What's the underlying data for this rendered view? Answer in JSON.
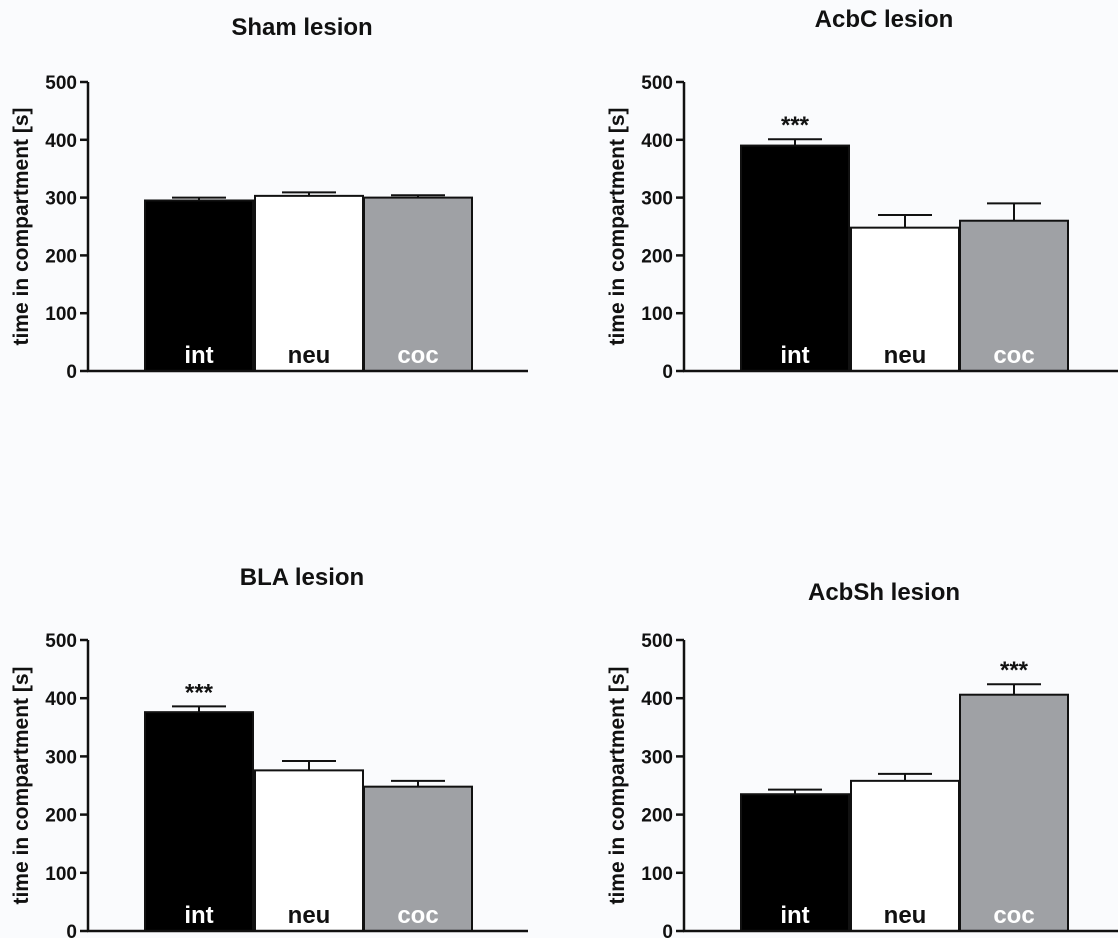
{
  "colors": {
    "int": "#000000",
    "neu": "#ffffff",
    "coc": "#9fa1a5",
    "axis": "#111111",
    "background": "#fafbfd"
  },
  "chart_data": [
    {
      "type": "bar",
      "title": "Sham lesion",
      "ylabel": "time in compartment [s]",
      "ylim": [
        0,
        500
      ],
      "yticks": [
        0,
        100,
        200,
        300,
        400,
        500
      ],
      "categories": [
        "int",
        "neu",
        "coc"
      ],
      "values": [
        295,
        303,
        300
      ],
      "errors": [
        5,
        6,
        4
      ],
      "significance": [
        "",
        "",
        ""
      ]
    },
    {
      "type": "bar",
      "title": "AcbC lesion",
      "ylabel": "time in compartment [s]",
      "ylim": [
        0,
        500
      ],
      "yticks": [
        0,
        100,
        200,
        300,
        400,
        500
      ],
      "categories": [
        "int",
        "neu",
        "coc"
      ],
      "values": [
        390,
        248,
        260
      ],
      "errors": [
        11,
        22,
        30
      ],
      "significance": [
        "***",
        "",
        ""
      ]
    },
    {
      "type": "bar",
      "title": "BLA lesion",
      "ylabel": "time in compartment [s]",
      "ylim": [
        0,
        500
      ],
      "yticks": [
        0,
        100,
        200,
        300,
        400,
        500
      ],
      "categories": [
        "int",
        "neu",
        "coc"
      ],
      "values": [
        376,
        276,
        248
      ],
      "errors": [
        10,
        16,
        10
      ],
      "significance": [
        "***",
        "",
        ""
      ]
    },
    {
      "type": "bar",
      "title": "AcbSh lesion",
      "ylabel": "time in compartment [s]",
      "ylim": [
        0,
        500
      ],
      "yticks": [
        0,
        100,
        200,
        300,
        400,
        500
      ],
      "categories": [
        "int",
        "neu",
        "coc"
      ],
      "values": [
        235,
        258,
        406
      ],
      "errors": [
        8,
        12,
        18
      ],
      "significance": [
        "",
        "",
        "***"
      ]
    }
  ]
}
